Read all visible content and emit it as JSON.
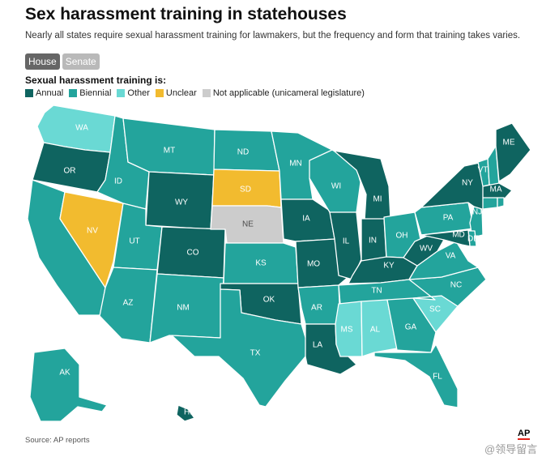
{
  "title": "Sex harassment training in statehouses",
  "subtitle": "Nearly all states require sexual harassment training for lawmakers, but the frequency and form that training takes varies.",
  "toggles": [
    {
      "label": "House",
      "active": true
    },
    {
      "label": "Senate",
      "active": false
    }
  ],
  "legend_title": "Sexual harassment training is:",
  "legend": [
    {
      "key": "annual",
      "label": "Annual",
      "color": "#0f6460"
    },
    {
      "key": "biennial",
      "label": "Biennial",
      "color": "#23a49c"
    },
    {
      "key": "other",
      "label": "Other",
      "color": "#6ad9d4"
    },
    {
      "key": "unclear",
      "label": "Unclear",
      "color": "#f2bb2f"
    },
    {
      "key": "na",
      "label": "Not applicable (unicameral legislature)",
      "color": "#cccccc"
    }
  ],
  "states": {
    "WA": "other",
    "OR": "annual",
    "CA": "biennial",
    "NV": "unclear",
    "ID": "biennial",
    "MT": "biennial",
    "WY": "annual",
    "UT": "biennial",
    "CO": "annual",
    "AZ": "biennial",
    "NM": "biennial",
    "ND": "biennial",
    "SD": "unclear",
    "NE": "na",
    "KS": "biennial",
    "OK": "annual",
    "TX": "biennial",
    "MN": "biennial",
    "IA": "annual",
    "MO": "annual",
    "AR": "biennial",
    "LA": "annual",
    "WI": "biennial",
    "IL": "annual",
    "MI": "annual",
    "IN": "annual",
    "OH": "biennial",
    "KY": "annual",
    "TN": "biennial",
    "MS": "other",
    "AL": "other",
    "GA": "biennial",
    "FL": "biennial",
    "SC": "other",
    "NC": "biennial",
    "VA": "biennial",
    "WV": "annual",
    "PA": "biennial",
    "NY": "annual",
    "VT": "biennial",
    "NH": "biennial",
    "ME": "annual",
    "MA": "annual",
    "RI": "biennial",
    "CT": "biennial",
    "NJ": "biennial",
    "DE": "biennial",
    "MD": "annual",
    "AK": "biennial",
    "HI": "annual"
  },
  "source": "Source: AP reports",
  "logo": "AP",
  "watermark": "@领导留言"
}
